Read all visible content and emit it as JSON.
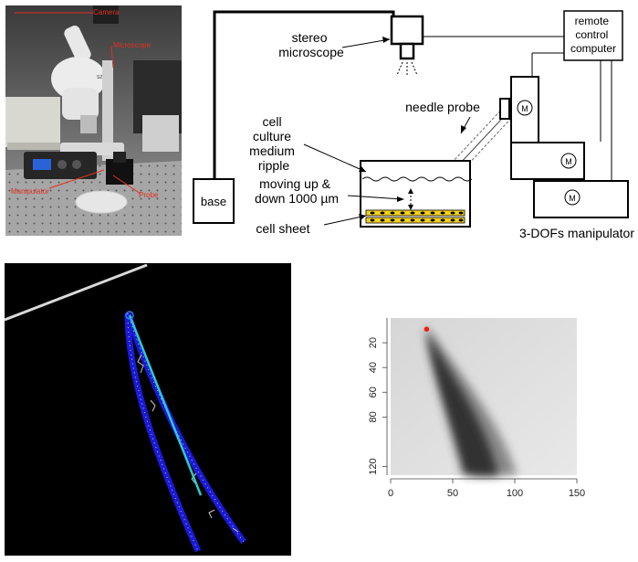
{
  "photo": {
    "labels": {
      "camera": "Camera",
      "microscope": "Microscope",
      "manipulator": "Manipulator",
      "probe": "Probe"
    },
    "device_text": "SZM",
    "label_color": "#e03020"
  },
  "schematic": {
    "stereo_microscope": "stereo\nmicroscope",
    "remote_control_computer": "remote\ncontrol\ncomputer",
    "needle_probe": "needle probe",
    "cell_culture_medium_ripple": "cell\nculture\nmedium\nripple",
    "moving_up_down": "moving up &\ndown 1000 µm",
    "cell_sheet": "cell  sheet",
    "base": "base",
    "manipulator": "3-DOFs manipulator",
    "motor_label": "M",
    "cell_color": "#f2d21b"
  },
  "detection": {
    "edge_color": "#1a1ad8",
    "axis_color": "#2ec9c9",
    "tip_color": "#2a7fff"
  },
  "chart_data": {
    "type": "heatmap",
    "title": "",
    "xlabel": "",
    "ylabel": "",
    "x_ticks": [
      0,
      50,
      100,
      150
    ],
    "y_ticks": [
      20,
      40,
      60,
      80,
      120
    ],
    "xlim": [
      0,
      150
    ],
    "ylim": [
      127,
      0
    ],
    "tip_point": {
      "x": 29,
      "y": 9,
      "color": "#e8201a"
    }
  }
}
